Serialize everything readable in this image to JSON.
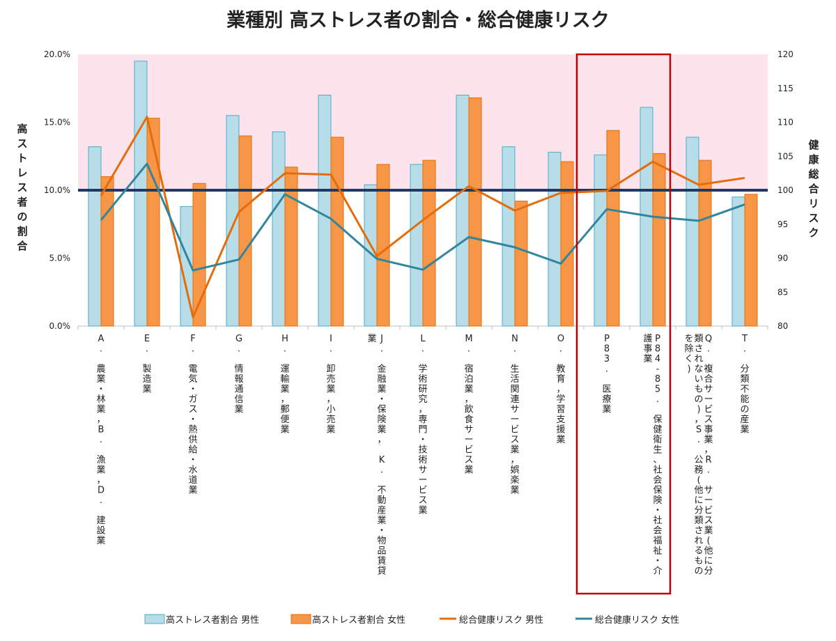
{
  "chart_data": {
    "type": "bar",
    "title": "業種別 高ストレス者の割合・総合健康リスク",
    "ylabel": "高ストレス者の割合",
    "y2label": "健康総合リスク",
    "ylim": [
      0,
      0.2
    ],
    "y2lim": [
      80,
      120
    ],
    "yticks": [
      "0.0%",
      "5.0%",
      "10.0%",
      "15.0%",
      "20.0%"
    ],
    "y2ticks": [
      "80",
      "85",
      "90",
      "95",
      "100",
      "105",
      "110",
      "115",
      "120"
    ],
    "reference_line": 100,
    "shaded_region": "above reference line (pink)",
    "highlighted_categories": [
      "P83. 医療業",
      "P84-85. 保健衛生、社会保険・社会福祉・介護事業"
    ],
    "legend_position": "bottom",
    "categories": [
      "A. 農業・林業，B. 漁業，D. 建設業",
      "E. 製造業",
      "F. 電気・ガス・熱供給・水道業",
      "G. 情報通信業",
      "H. 運輸業，郵便業",
      "I. 卸売業，小売業",
      "J. 金融業・保険業， K. 不動産業・物品賃貸業",
      "L. 学術研究，専門・技術サービス業",
      "M. 宿泊業，飲食サービス業",
      "N. 生活関連サービス業，娯楽業",
      "O. 教育，学習支援業",
      "P83. 医療業",
      "P84-85. 保健衛生、社会保険・社会福祉・介護事業",
      "Q. 複合サービス事業，R. サービス業(他に分類されないもの)，S. 公務(他に分類されるものを除く)",
      "T. 分類不能の産業"
    ],
    "series": [
      {
        "name": "高ストレス者割合 男性",
        "type": "bar",
        "axis": "left",
        "color": "#b7dde8",
        "values": [
          0.132,
          0.195,
          0.088,
          0.155,
          0.143,
          0.17,
          0.104,
          0.119,
          0.17,
          0.132,
          0.128,
          0.126,
          0.161,
          0.139,
          0.095
        ]
      },
      {
        "name": "高ストレス者割合 女性",
        "type": "bar",
        "axis": "left",
        "color": "#f79646",
        "values": [
          0.11,
          0.153,
          0.105,
          0.14,
          0.117,
          0.139,
          0.119,
          0.122,
          0.168,
          0.092,
          0.121,
          0.144,
          0.127,
          0.122,
          0.097
        ]
      },
      {
        "name": "総合健康リスク 男性",
        "type": "line",
        "axis": "right",
        "color": "#e46c0a",
        "values": [
          99.2,
          110.8,
          81.3,
          96.8,
          102.5,
          102.3,
          90.3,
          95.6,
          100.6,
          97.0,
          99.6,
          99.9,
          104.2,
          100.8,
          101.8
        ]
      },
      {
        "name": "総合健康リスク 女性",
        "type": "line",
        "axis": "right",
        "color": "#31859c",
        "values": [
          95.6,
          103.9,
          88.2,
          89.8,
          99.4,
          95.8,
          89.9,
          88.3,
          93.1,
          91.6,
          89.2,
          97.2,
          96.1,
          95.5,
          97.9
        ]
      }
    ]
  }
}
